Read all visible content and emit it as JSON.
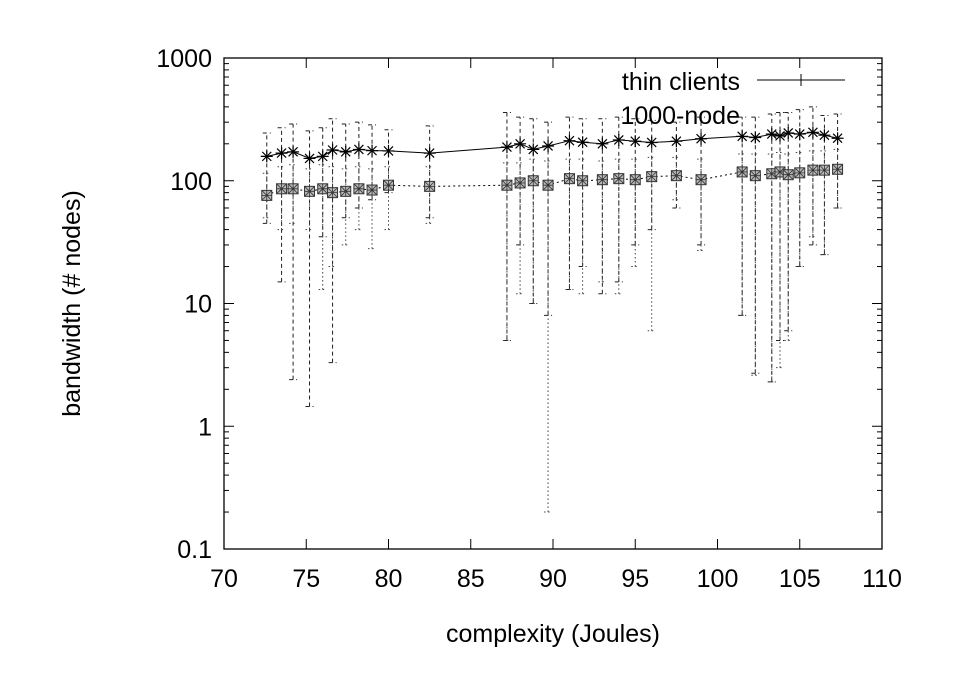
{
  "chart_data": {
    "type": "scatter",
    "x_axis": {
      "label": "complexity (Joules)",
      "range": [
        70,
        110
      ],
      "ticks": [
        "70",
        "75",
        "80",
        "85",
        "90",
        "95",
        "100",
        "105",
        "110"
      ]
    },
    "y_axis": {
      "label": "bandwidth (# nodes)",
      "scale": "log",
      "range": [
        0.1,
        1000
      ],
      "ticks": [
        "0.1",
        "1",
        "10",
        "100",
        "1000"
      ]
    },
    "grid": false,
    "legend": {
      "placement": "top-right"
    },
    "series": [
      {
        "name": "thin clients",
        "marker": "star",
        "line": "solid",
        "error_bars": "dashed",
        "points": [
          {
            "x": 72.6,
            "y": 158,
            "ylo": 45,
            "yhi": 245
          },
          {
            "x": 73.5,
            "y": 168,
            "ylo": 15,
            "yhi": 270
          },
          {
            "x": 74.2,
            "y": 172,
            "ylo": 2.4,
            "yhi": 290
          },
          {
            "x": 75.2,
            "y": 152,
            "ylo": 1.45,
            "yhi": 255
          },
          {
            "x": 76.0,
            "y": 158,
            "ylo": 35,
            "yhi": 270
          },
          {
            "x": 76.6,
            "y": 178,
            "ylo": 3.3,
            "yhi": 320
          },
          {
            "x": 77.4,
            "y": 172,
            "ylo": 50,
            "yhi": 290
          },
          {
            "x": 78.2,
            "y": 180,
            "ylo": 60,
            "yhi": 300
          },
          {
            "x": 79.0,
            "y": 176,
            "ylo": 70,
            "yhi": 285
          },
          {
            "x": 80.0,
            "y": 175,
            "ylo": 80,
            "yhi": 260
          },
          {
            "x": 82.5,
            "y": 168,
            "ylo": 50,
            "yhi": 280
          },
          {
            "x": 87.2,
            "y": 188,
            "ylo": 5,
            "yhi": 360
          },
          {
            "x": 88.0,
            "y": 200,
            "ylo": 30,
            "yhi": 330
          },
          {
            "x": 88.8,
            "y": 180,
            "ylo": 10,
            "yhi": 320
          },
          {
            "x": 89.7,
            "y": 192,
            "ylo": 8,
            "yhi": 300
          },
          {
            "x": 91.0,
            "y": 212,
            "ylo": 13,
            "yhi": 330
          },
          {
            "x": 91.8,
            "y": 206,
            "ylo": 20,
            "yhi": 320
          },
          {
            "x": 93.0,
            "y": 200,
            "ylo": 12,
            "yhi": 320
          },
          {
            "x": 94.0,
            "y": 215,
            "ylo": 15,
            "yhi": 330
          },
          {
            "x": 95.0,
            "y": 210,
            "ylo": 30,
            "yhi": 320
          },
          {
            "x": 96.0,
            "y": 205,
            "ylo": 40,
            "yhi": 310
          },
          {
            "x": 97.5,
            "y": 210,
            "ylo": 60,
            "yhi": 300
          },
          {
            "x": 99.0,
            "y": 220,
            "ylo": 30,
            "yhi": 330
          },
          {
            "x": 101.5,
            "y": 230,
            "ylo": 8,
            "yhi": 330
          },
          {
            "x": 102.3,
            "y": 225,
            "ylo": 2.7,
            "yhi": 330
          },
          {
            "x": 103.3,
            "y": 240,
            "ylo": 2.3,
            "yhi": 350
          },
          {
            "x": 103.8,
            "y": 232,
            "ylo": 5,
            "yhi": 360
          },
          {
            "x": 104.3,
            "y": 245,
            "ylo": 6,
            "yhi": 360
          },
          {
            "x": 105.0,
            "y": 240,
            "ylo": 20,
            "yhi": 380
          },
          {
            "x": 105.8,
            "y": 248,
            "ylo": 30,
            "yhi": 400
          },
          {
            "x": 106.5,
            "y": 235,
            "ylo": 25,
            "yhi": 340
          },
          {
            "x": 107.3,
            "y": 222,
            "ylo": 60,
            "yhi": 350
          }
        ]
      },
      {
        "name": "1000-node",
        "marker": "boxed-cross",
        "line": "dotted",
        "error_bars": "dotted",
        "points": [
          {
            "x": 72.6,
            "y": 76,
            "ylo": 50,
            "yhi": 115
          },
          {
            "x": 73.5,
            "y": 86,
            "ylo": 40,
            "yhi": 130
          },
          {
            "x": 74.2,
            "y": 86,
            "ylo": 45,
            "yhi": 135
          },
          {
            "x": 75.2,
            "y": 82,
            "ylo": 40,
            "yhi": 125
          },
          {
            "x": 76.0,
            "y": 86,
            "ylo": 13,
            "yhi": 135
          },
          {
            "x": 76.6,
            "y": 80,
            "ylo": 20,
            "yhi": 130
          },
          {
            "x": 77.4,
            "y": 82,
            "ylo": 30,
            "yhi": 125
          },
          {
            "x": 78.2,
            "y": 86,
            "ylo": 40,
            "yhi": 130
          },
          {
            "x": 79.0,
            "y": 84,
            "ylo": 28,
            "yhi": 125
          },
          {
            "x": 80.0,
            "y": 92,
            "ylo": 40,
            "yhi": 130
          },
          {
            "x": 82.5,
            "y": 90,
            "ylo": 45,
            "yhi": 130
          },
          {
            "x": 87.2,
            "y": 92,
            "ylo": 5,
            "yhi": 140
          },
          {
            "x": 88.0,
            "y": 96,
            "ylo": 12,
            "yhi": 140
          },
          {
            "x": 88.8,
            "y": 100,
            "ylo": 10,
            "yhi": 150
          },
          {
            "x": 89.7,
            "y": 92,
            "ylo": 0.2,
            "yhi": 145
          },
          {
            "x": 91.0,
            "y": 104,
            "ylo": 13,
            "yhi": 150
          },
          {
            "x": 91.8,
            "y": 100,
            "ylo": 12,
            "yhi": 150
          },
          {
            "x": 93.0,
            "y": 102,
            "ylo": 15,
            "yhi": 145
          },
          {
            "x": 94.0,
            "y": 104,
            "ylo": 12,
            "yhi": 150
          },
          {
            "x": 95.0,
            "y": 102,
            "ylo": 20,
            "yhi": 150
          },
          {
            "x": 96.0,
            "y": 108,
            "ylo": 6,
            "yhi": 155
          },
          {
            "x": 97.5,
            "y": 110,
            "ylo": 70,
            "yhi": 155
          },
          {
            "x": 99.0,
            "y": 102,
            "ylo": 27,
            "yhi": 150
          },
          {
            "x": 101.5,
            "y": 118,
            "ylo": 8,
            "yhi": 165
          },
          {
            "x": 102.3,
            "y": 110,
            "ylo": 2.6,
            "yhi": 165
          },
          {
            "x": 103.3,
            "y": 114,
            "ylo": 2.3,
            "yhi": 165
          },
          {
            "x": 103.8,
            "y": 118,
            "ylo": 3,
            "yhi": 170
          },
          {
            "x": 104.3,
            "y": 112,
            "ylo": 5,
            "yhi": 165
          },
          {
            "x": 105.0,
            "y": 116,
            "ylo": 20,
            "yhi": 170
          },
          {
            "x": 105.8,
            "y": 122,
            "ylo": 35,
            "yhi": 175
          },
          {
            "x": 106.5,
            "y": 122,
            "ylo": 25,
            "yhi": 175
          },
          {
            "x": 107.3,
            "y": 124,
            "ylo": 60,
            "yhi": 180
          }
        ]
      }
    ]
  }
}
